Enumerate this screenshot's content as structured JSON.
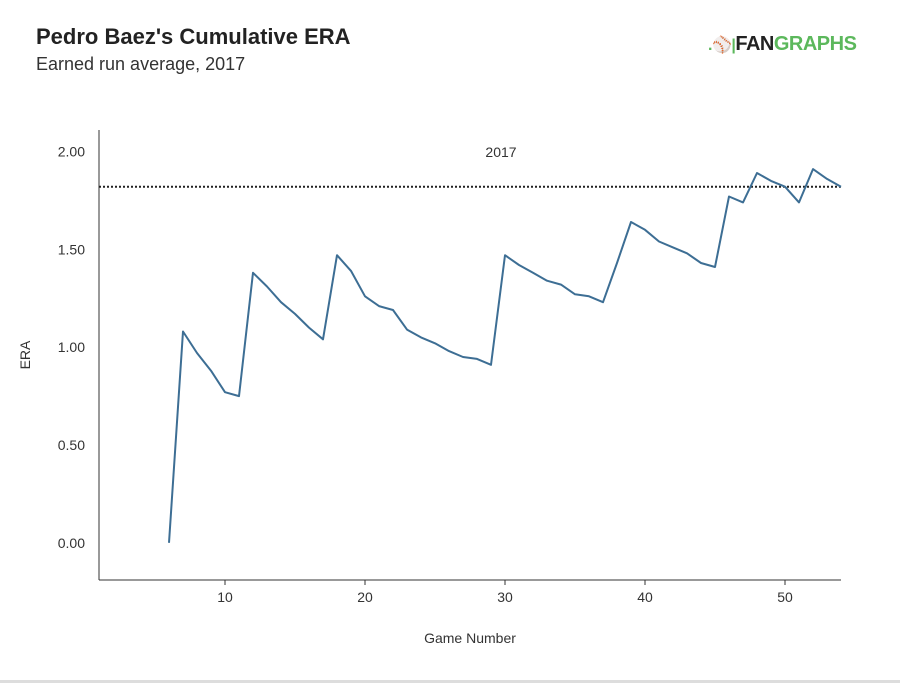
{
  "header": {
    "title": "Pedro Baez's Cumulative ERA",
    "subtitle": "Earned run average, 2017"
  },
  "logo": {
    "text": "FANGRAPHS",
    "part1": "FAN",
    "part2": "GRAPHS"
  },
  "colors": {
    "line": "#3d6e94",
    "reference": "#222222",
    "logo_green": "#5cb85c"
  },
  "chart_data": {
    "type": "line",
    "title": "Pedro Baez's Cumulative ERA",
    "subtitle": "Earned run average, 2017",
    "xlabel": "Game Number",
    "ylabel": "ERA",
    "xlim": [
      1,
      54
    ],
    "ylim": [
      -0.19,
      2.11
    ],
    "xticks": [
      10,
      20,
      30,
      40,
      50
    ],
    "xtick_labels": [
      "10",
      "20",
      "30",
      "40",
      "50"
    ],
    "yticks": [
      0,
      0.5,
      1,
      1.5,
      2
    ],
    "ytick_labels": [
      "0.00",
      "0.50",
      "1.00",
      "1.50",
      "2.00"
    ],
    "reference_line": {
      "value": 1.82,
      "label": "2017",
      "style": "dotted"
    },
    "x": [
      6,
      7,
      8,
      9,
      10,
      11,
      12,
      13,
      14,
      15,
      16,
      17,
      18,
      19,
      20,
      21,
      22,
      23,
      24,
      25,
      26,
      27,
      28,
      29,
      30,
      31,
      32,
      33,
      34,
      35,
      36,
      37,
      38,
      39,
      40,
      41,
      42,
      43,
      44,
      45,
      46,
      47,
      48,
      49,
      50,
      51,
      52,
      53,
      54
    ],
    "y": [
      0.0,
      1.08,
      0.97,
      0.88,
      0.77,
      0.75,
      1.38,
      1.31,
      1.23,
      1.17,
      1.1,
      1.04,
      1.47,
      1.39,
      1.26,
      1.21,
      1.19,
      1.09,
      1.05,
      1.02,
      0.98,
      0.95,
      0.94,
      0.91,
      1.47,
      1.42,
      1.38,
      1.34,
      1.32,
      1.27,
      1.26,
      1.23,
      1.43,
      1.64,
      1.6,
      1.54,
      1.51,
      1.48,
      1.43,
      1.41,
      1.77,
      1.74,
      1.89,
      1.85,
      1.82,
      1.74,
      1.91,
      1.86,
      1.82
    ]
  }
}
